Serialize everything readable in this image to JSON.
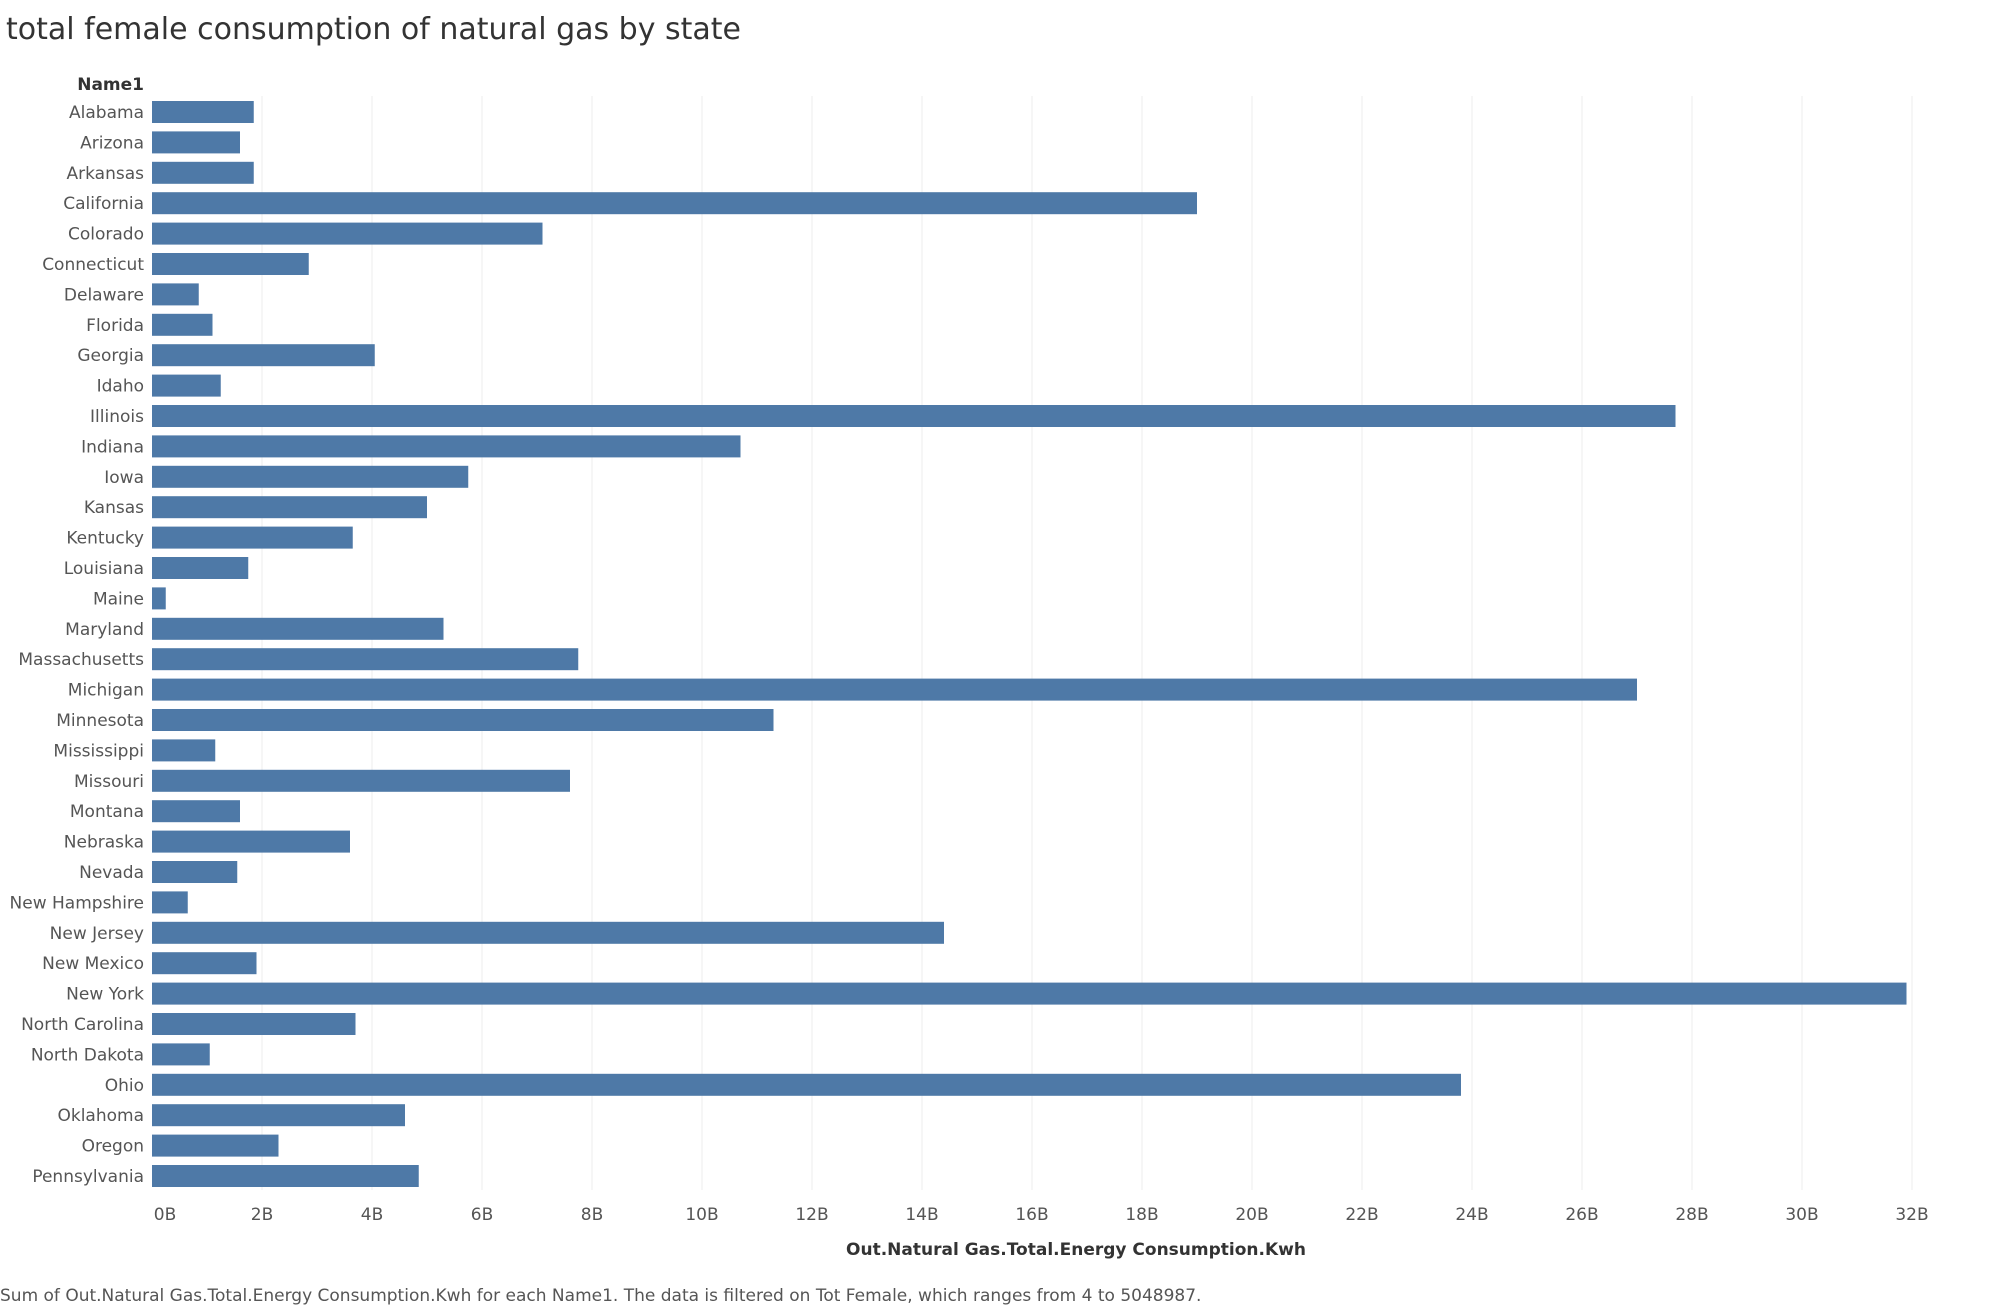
{
  "title": "total female consumption of natural gas by state",
  "caption": "Sum of Out.Natural Gas.Total.Energy Consumption.Kwh for each Name1. The data is filtered on Tot Female, which ranges from 4 to 5048987.",
  "colors": {
    "bar": "#4e79a7",
    "grid": "#ececec",
    "label": "#555555",
    "axis_title": "#333333"
  },
  "chart_data": {
    "type": "bar",
    "orientation": "horizontal",
    "title": "total female consumption of natural gas by state",
    "row_header": "Name1",
    "xlabel": "Out.Natural Gas.Total.Energy Consumption.Kwh",
    "ylabel": "Name1",
    "xlim": [
      0,
      33
    ],
    "x_ticks": [
      "0B",
      "2B",
      "4B",
      "6B",
      "8B",
      "10B",
      "12B",
      "14B",
      "16B",
      "18B",
      "20B",
      "22B",
      "24B",
      "26B",
      "28B",
      "30B",
      "32B"
    ],
    "x_tick_values": [
      0,
      2,
      4,
      6,
      8,
      10,
      12,
      14,
      16,
      18,
      20,
      22,
      24,
      26,
      28,
      30,
      32
    ],
    "value_unit": "billion kWh",
    "grid": true,
    "categories": [
      "Alabama",
      "Arizona",
      "Arkansas",
      "California",
      "Colorado",
      "Connecticut",
      "Delaware",
      "Florida",
      "Georgia",
      "Idaho",
      "Illinois",
      "Indiana",
      "Iowa",
      "Kansas",
      "Kentucky",
      "Louisiana",
      "Maine",
      "Maryland",
      "Massachusetts",
      "Michigan",
      "Minnesota",
      "Mississippi",
      "Missouri",
      "Montana",
      "Nebraska",
      "Nevada",
      "New Hampshire",
      "New Jersey",
      "New Mexico",
      "New York",
      "North Carolina",
      "North Dakota",
      "Ohio",
      "Oklahoma",
      "Oregon",
      "Pennsylvania"
    ],
    "values": [
      1.85,
      1.6,
      1.85,
      19.0,
      7.1,
      2.85,
      0.85,
      1.1,
      4.05,
      1.25,
      27.7,
      10.7,
      5.75,
      5.0,
      3.65,
      1.75,
      0.25,
      5.3,
      7.75,
      27.0,
      11.3,
      1.15,
      7.6,
      1.6,
      3.6,
      1.55,
      0.65,
      14.4,
      1.9,
      31.9,
      3.7,
      1.05,
      23.8,
      4.6,
      2.3,
      4.85
    ]
  }
}
